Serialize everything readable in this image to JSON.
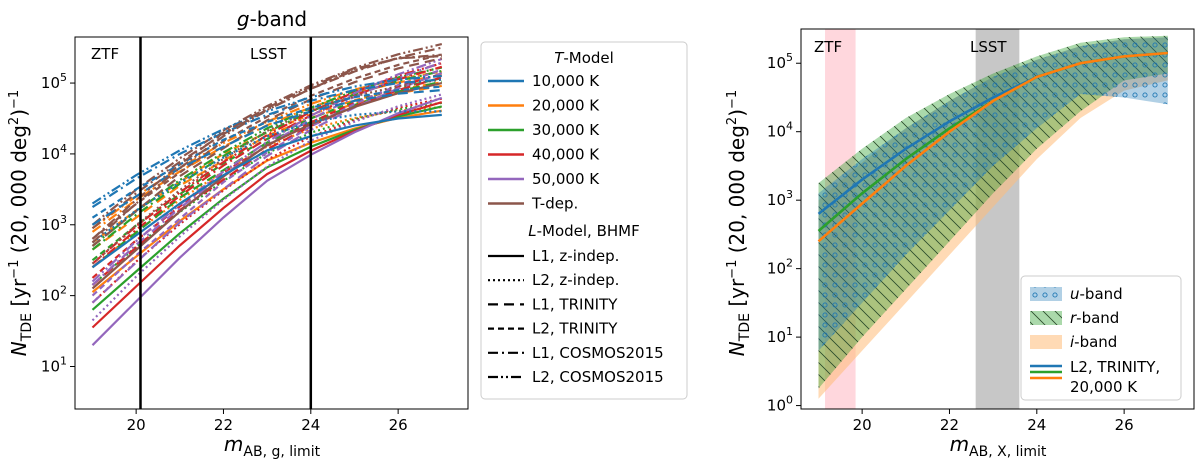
{
  "chart_data": [
    {
      "type": "line",
      "title_italic": "g",
      "title_rest": "-band",
      "xlabel": "m_AB,g,limit",
      "ylabel": "N_TDE [yr^-1 (20,000 deg^2)^-1]",
      "xlim": [
        18.6,
        27.6
      ],
      "ylim_log10": [
        0.4,
        5.65
      ],
      "xticks": [
        20,
        22,
        24,
        26
      ],
      "yticks": [
        "10^1",
        "10^2",
        "10^3",
        "10^4",
        "10^5"
      ],
      "x": [
        19,
        20,
        21,
        22,
        23,
        24,
        25,
        26,
        27
      ],
      "vlines": [
        {
          "x": 20.1,
          "label": "ZTF"
        },
        {
          "x": 24.0,
          "label": "LSST"
        }
      ],
      "legend_t_title": "T-Model",
      "legend_l_title": "L-Model, BHMF",
      "temperatures": [
        {
          "label": "10,000 K",
          "color": "#1f77b4"
        },
        {
          "label": "20,000 K",
          "color": "#ff7f0e"
        },
        {
          "label": "30,000 K",
          "color": "#2ca02c"
        },
        {
          "label": "40,000 K",
          "color": "#d62728"
        },
        {
          "label": "50,000 K",
          "color": "#9467bd"
        },
        {
          "label": "T-dep.",
          "color": "#8c564b"
        }
      ],
      "l_models": [
        {
          "label": "L1, z-indep.",
          "dash": "solid"
        },
        {
          "label": "L2, z-indep.",
          "dash": "dotted"
        },
        {
          "label": "L1, TRINITY",
          "dash": "dashed"
        },
        {
          "label": "L2, TRINITY",
          "dash": "dashed-short"
        },
        {
          "label": "L1, COSMOS2015",
          "dash": "dashdot"
        },
        {
          "label": "L2, COSMOS2015",
          "dash": "dashdotdot"
        }
      ],
      "series": [
        {
          "temperature": "10,000 K",
          "l_model": "L1, z-indep.",
          "log10_values": [
            2.4,
            2.85,
            3.3,
            3.7,
            4.05,
            4.25,
            4.4,
            4.5,
            4.55
          ]
        },
        {
          "temperature": "10,000 K",
          "l_model": "L2, z-indep.",
          "log10_values": [
            2.75,
            3.2,
            3.6,
            3.95,
            4.25,
            4.45,
            4.55,
            4.6,
            4.6
          ]
        },
        {
          "temperature": "10,000 K",
          "l_model": "L1, TRINITY",
          "log10_values": [
            3.0,
            3.4,
            3.8,
            4.1,
            4.4,
            4.6,
            4.75,
            4.85,
            4.9
          ]
        },
        {
          "temperature": "10,000 K",
          "l_model": "L2, TRINITY",
          "log10_values": [
            3.1,
            3.5,
            3.85,
            4.2,
            4.45,
            4.65,
            4.8,
            4.9,
            4.95
          ]
        },
        {
          "temperature": "10,000 K",
          "l_model": "L1, COSMOS2015",
          "log10_values": [
            3.25,
            3.65,
            4.0,
            4.3,
            4.55,
            4.75,
            4.9,
            5.0,
            5.05
          ]
        },
        {
          "temperature": "10,000 K",
          "l_model": "L2, COSMOS2015",
          "log10_values": [
            3.3,
            3.7,
            4.05,
            4.35,
            4.6,
            4.8,
            4.95,
            5.05,
            5.1
          ]
        },
        {
          "temperature": "T-dep.",
          "l_model": "L1, COSMOS2015",
          "log10_values": [
            2.8,
            3.35,
            3.85,
            4.3,
            4.65,
            4.95,
            5.2,
            5.35,
            5.4
          ]
        },
        {
          "temperature": "T-dep.",
          "l_model": "L2, COSMOS2015",
          "log10_values": [
            2.75,
            3.3,
            3.8,
            4.25,
            4.62,
            4.92,
            5.18,
            5.35,
            5.38
          ]
        }
      ]
    },
    {
      "type": "area",
      "xlabel": "m_AB,X,limit",
      "ylabel": "N_TDE [yr^-1 (20,000 deg^2)^-1]",
      "xlim": [
        18.6,
        27.6
      ],
      "ylim_log10": [
        -0.05,
        5.5
      ],
      "xticks": [
        20,
        22,
        24,
        26
      ],
      "yticks": [
        "10^0",
        "10^1",
        "10^2",
        "10^3",
        "10^4",
        "10^5"
      ],
      "x": [
        19,
        20,
        21,
        22,
        23,
        24,
        25,
        26,
        27
      ],
      "spans": [
        {
          "x0": 19.15,
          "x1": 19.85,
          "label": "ZTF",
          "color": "#ffb6c1"
        },
        {
          "x0": 22.6,
          "x1": 23.6,
          "label": "LSST",
          "color": "#999999"
        }
      ],
      "bands": [
        {
          "label": "u-band",
          "color": "#1f77b4",
          "hatch": "circles",
          "lower_log10": [
            0.8,
            1.5,
            2.2,
            2.85,
            3.5,
            4.05,
            4.55,
            4.5,
            4.4
          ],
          "upper_log10": [
            3.1,
            3.6,
            4.05,
            4.45,
            4.8,
            5.05,
            5.25,
            5.35,
            5.38
          ]
        },
        {
          "label": "r-band",
          "color": "#2ca02c",
          "hatch": "diagonal",
          "lower_log10": [
            0.25,
            1.0,
            1.7,
            2.4,
            3.1,
            3.75,
            4.3,
            4.75,
            4.85
          ],
          "upper_log10": [
            3.25,
            3.75,
            4.2,
            4.55,
            4.85,
            5.1,
            5.3,
            5.38,
            5.4
          ]
        },
        {
          "label": "i-band",
          "color": "#ffbb78",
          "hatch": "none",
          "lower_log10": [
            0.1,
            0.8,
            1.5,
            2.2,
            2.9,
            3.6,
            4.2,
            4.6,
            4.75
          ],
          "upper_log10": [
            3.0,
            3.55,
            4.05,
            4.45,
            4.8,
            5.05,
            5.25,
            5.35,
            5.38
          ]
        }
      ],
      "lines_legend": "L2, TRINITY,\n20,000 K",
      "lines": [
        {
          "band": "u-band",
          "color": "#1f77b4",
          "log10_values": [
            2.8,
            3.3,
            3.75,
            4.15,
            4.5,
            4.8,
            5.0,
            5.1,
            5.15
          ]
        },
        {
          "band": "r-band",
          "color": "#2ca02c",
          "log10_values": [
            2.55,
            3.1,
            3.6,
            4.05,
            4.45,
            4.8,
            5.0,
            5.1,
            5.15
          ]
        },
        {
          "band": "i-band",
          "color": "#ff7f0e",
          "log10_values": [
            2.4,
            2.95,
            3.5,
            4.0,
            4.45,
            4.8,
            5.0,
            5.1,
            5.15
          ]
        }
      ]
    }
  ],
  "text": {
    "zt": "ZTF",
    "ls": "LSST",
    "xlab_left_main": "m",
    "xlab_left_sub": "AB, g, limit",
    "xlab_right_main": "m",
    "xlab_right_sub": "AB, X, limit",
    "ylab_main": "N",
    "ylab_sub": "TDE",
    "ylab_rest": " [yr",
    "ylab_exp": "−1",
    "ylab_tail": " (20, 000 deg",
    "ylab_exp2": "2",
    "ylab_end": ")",
    "ylab_exp3": "−1"
  }
}
